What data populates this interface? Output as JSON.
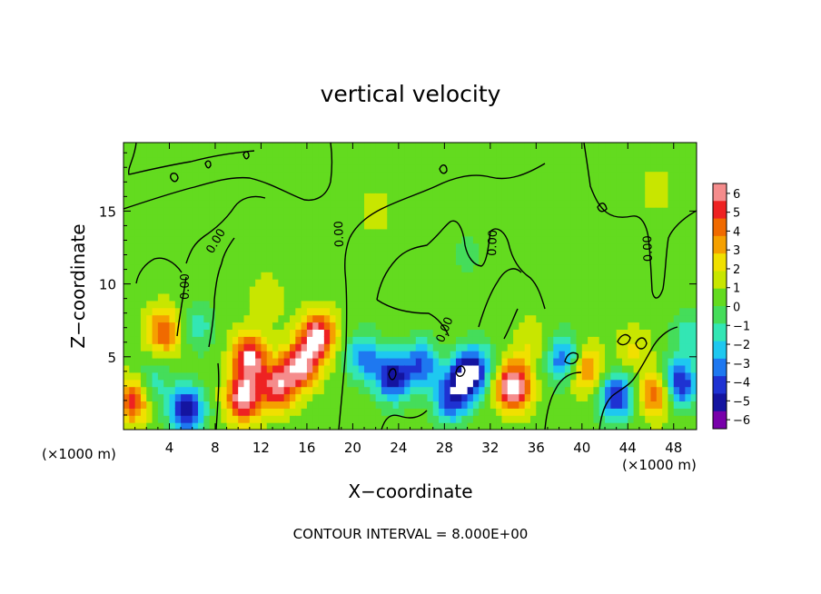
{
  "chart_data": {
    "type": "heatmap",
    "title": "vertical velocity",
    "xlabel": "X−coordinate",
    "ylabel": "Z−coordinate",
    "x_unit_left": "(×1000 m)",
    "x_unit_right": "(×1000 m)",
    "x_ticks": [
      4,
      8,
      12,
      16,
      20,
      24,
      28,
      32,
      36,
      40,
      44,
      48
    ],
    "y_ticks": [
      5,
      10,
      15
    ],
    "xlim": [
      0,
      50
    ],
    "ylim": [
      0,
      19.7
    ],
    "colorbar": {
      "ticks": [
        "6",
        "5",
        "4",
        "3",
        "2",
        "1",
        "0",
        "−1",
        "−2",
        "−3",
        "−4",
        "−5",
        "−6"
      ],
      "colors": [
        "#f58c8c",
        "#ee2222",
        "#f06a00",
        "#f5a000",
        "#f0e000",
        "#c8e600",
        "#63db1f",
        "#45dd5a",
        "#33e6b4",
        "#1ec8f0",
        "#1e78f0",
        "#1e32d2",
        "#1414a0",
        "#7800aa"
      ]
    },
    "contour_labels": [
      "0.00",
      "0.00",
      "0.00",
      "0.00",
      "0.00",
      "0.00"
    ],
    "footnote": "CONTOUR INTERVAL = 8.000E+00",
    "anomalies": [
      {
        "x": 0.8,
        "z": 2.0,
        "w": 5.0
      },
      {
        "x": 3.5,
        "z": 6.8,
        "w": 4.5
      },
      {
        "x": 2.5,
        "z": 3.2,
        "w": -2.2
      },
      {
        "x": 5.5,
        "z": 1.4,
        "w": -6.5
      },
      {
        "x": 6.5,
        "z": 7.0,
        "w": -2.0
      },
      {
        "x": 10.5,
        "z": 2.2,
        "w": 7.0
      },
      {
        "x": 11.0,
        "z": 5.0,
        "w": 6.5
      },
      {
        "x": 13.5,
        "z": 3.0,
        "w": 6.0
      },
      {
        "x": 15.5,
        "z": 4.5,
        "w": 6.5
      },
      {
        "x": 17.0,
        "z": 6.5,
        "w": 6.5
      },
      {
        "x": 12.5,
        "z": 9.0,
        "w": 1.5
      },
      {
        "x": 21.0,
        "z": 5.0,
        "w": -4.0
      },
      {
        "x": 23.5,
        "z": 3.6,
        "w": -6.0
      },
      {
        "x": 26.0,
        "z": 4.5,
        "w": -4.5
      },
      {
        "x": 28.5,
        "z": 2.0,
        "w": -4.5
      },
      {
        "x": 29.8,
        "z": 3.6,
        "w": -6.5
      },
      {
        "x": 31.0,
        "z": 4.5,
        "w": -3.0
      },
      {
        "x": 34.0,
        "z": 3.0,
        "w": 7.5
      },
      {
        "x": 35.5,
        "z": 6.0,
        "w": 1.5
      },
      {
        "x": 38.5,
        "z": 4.8,
        "w": -5.0
      },
      {
        "x": 40.2,
        "z": 4.2,
        "w": 4.5
      },
      {
        "x": 43.0,
        "z": 2.3,
        "w": -5.5
      },
      {
        "x": 46.5,
        "z": 2.5,
        "w": 4.5
      },
      {
        "x": 48.5,
        "z": 3.2,
        "w": -6.0
      },
      {
        "x": 49.5,
        "z": 6.5,
        "w": -2.5
      },
      {
        "x": 44.5,
        "z": 5.5,
        "w": 1.8
      },
      {
        "x": 30.0,
        "z": 12.0,
        "w": -0.8
      },
      {
        "x": 22.0,
        "z": 15.0,
        "w": 1.0
      },
      {
        "x": 46.5,
        "z": 16.5,
        "w": 1.0
      },
      {
        "x": 40.0,
        "z": 12.0,
        "w": -0.5
      }
    ],
    "grid": false,
    "legend": "colorbar right"
  }
}
